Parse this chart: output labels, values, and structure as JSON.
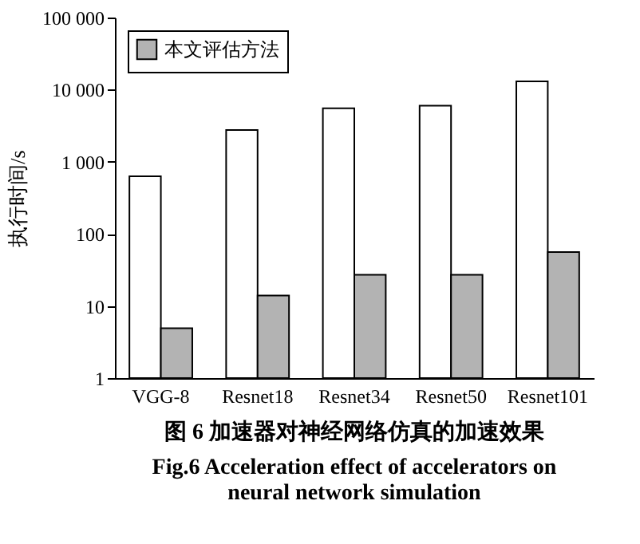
{
  "chart_data": {
    "type": "bar",
    "title": "图 6   加速器对神经网络仿真的加速效果",
    "subtitle": "Fig.6    Acceleration effect of accelerators on neural network simulation",
    "ylabel": "执行时间/s",
    "categories": [
      "VGG-8",
      "Resnet18",
      "Resnet34",
      "Resnet50",
      "Resnet101"
    ],
    "series": [
      {
        "color": "#ffffff",
        "values": [
          630,
          2760,
          5500,
          6000,
          13000
        ]
      },
      {
        "name": "本文评估方法",
        "color": "#b3b3b3",
        "values": [
          4.9,
          14,
          27,
          27,
          56
        ]
      }
    ],
    "log": true,
    "ylim": [
      1,
      100000
    ],
    "yticks": [
      1,
      10,
      100,
      {
        "value": 1000,
        "label": "1 000"
      },
      {
        "value": 10000,
        "label": "10 000"
      },
      {
        "value": 100000,
        "label": "100 000"
      }
    ],
    "grid": false,
    "legend": "top left"
  }
}
